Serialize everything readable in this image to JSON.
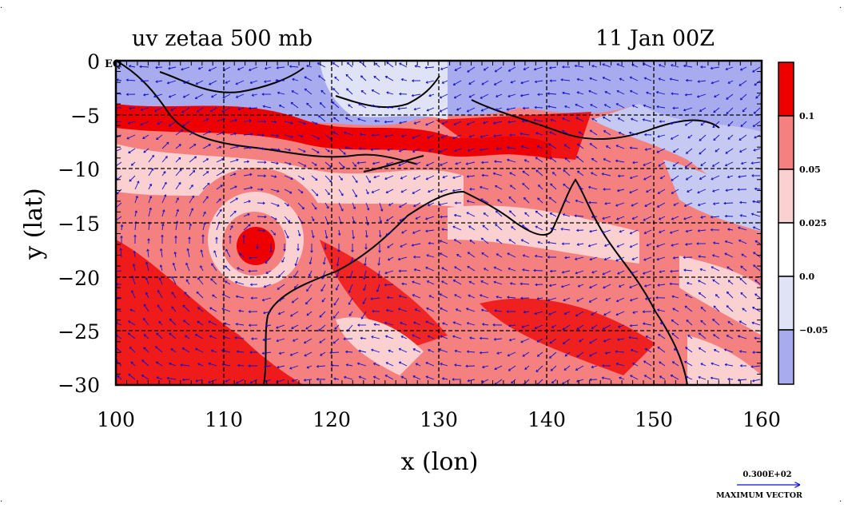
{
  "plot": {
    "title": "uv zetaa 500 mb",
    "timestamp": "11 Jan 00Z",
    "xlabel": "x (lon)",
    "ylabel": "y (lat)",
    "equator_label": "EQ"
  },
  "chart_data": {
    "type": "heatmap",
    "x_range": [
      100,
      160
    ],
    "y_range": [
      -30,
      0
    ],
    "x_ticks": [
      "100",
      "110",
      "120",
      "130",
      "140",
      "150",
      "160"
    ],
    "y_ticks": [
      "0",
      "−5",
      "−10",
      "−15",
      "−20",
      "−25",
      "−30"
    ],
    "grid": true,
    "colorbar": {
      "labels": [
        "0.1",
        "0.05",
        "0.025",
        "0.0",
        "−0.05"
      ],
      "colors": [
        "#ee0000",
        "#f48080",
        "#fbd0d0",
        "#ffffff",
        "#e0e2f6",
        "#a8acee"
      ]
    }
  },
  "vector_legend": {
    "magnitude": "0.300E+02",
    "label": "MAXIMUM VECTOR",
    "color": "#1010cc"
  }
}
